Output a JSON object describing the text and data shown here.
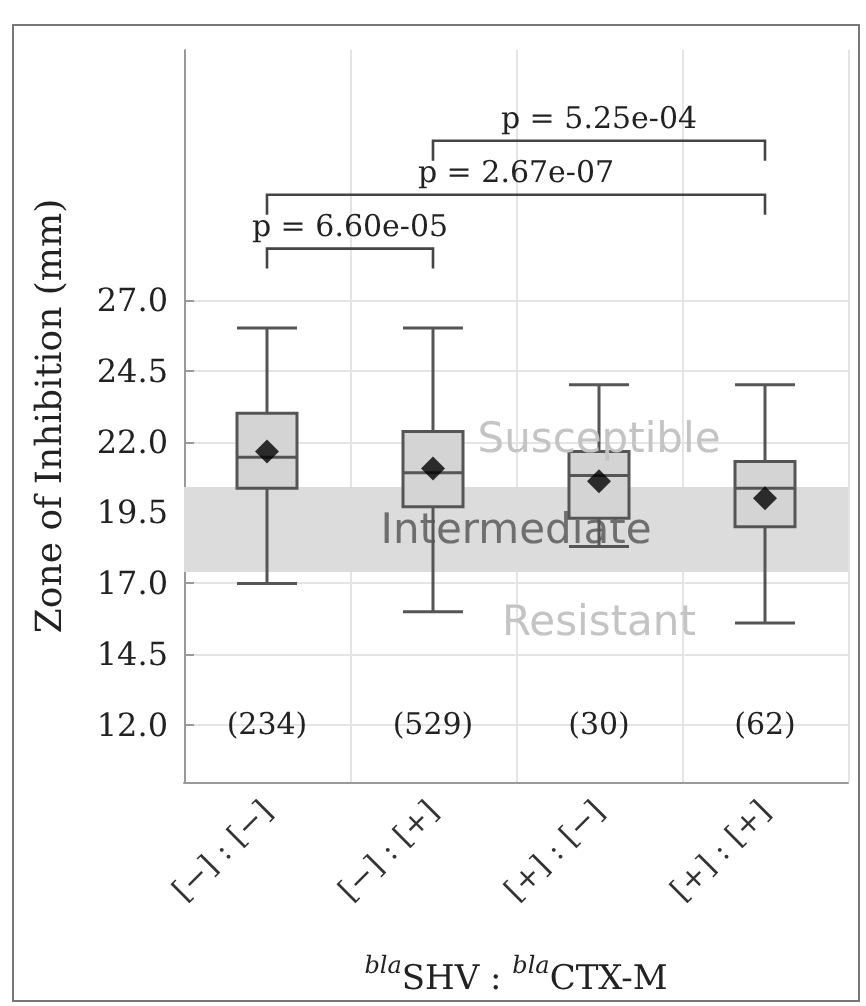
{
  "chart_data": {
    "type": "box",
    "ylabel": "Zone of Inhibition (mm)",
    "xlabel": "$^{bla}$SHV : $^{bla}$CTX-M",
    "categories": [
      "[−] : [−]",
      "[−] : [+]",
      "[+] : [−]",
      "[+] : [+]"
    ],
    "boxes": [
      {
        "low": 17.0,
        "q1": 20.35,
        "median": 21.45,
        "q3": 23.0,
        "high": 26.0,
        "mean": 21.65
      },
      {
        "low": 16.0,
        "q1": 19.7,
        "median": 20.9,
        "q3": 22.35,
        "high": 26.0,
        "mean": 21.05
      },
      {
        "low": 18.3,
        "q1": 19.3,
        "median": 20.8,
        "q3": 21.65,
        "high": 24.0,
        "mean": 20.6
      },
      {
        "low": 15.6,
        "q1": 19.0,
        "median": 20.35,
        "q3": 21.3,
        "high": 24.0,
        "mean": 20.0
      }
    ],
    "color": "#d4d4d4",
    "marker": "diamond",
    "grid": true,
    "ylim": [
      10.0,
      35.8
    ],
    "yticks": [
      {
        "value": 12,
        "label": "12.0"
      },
      {
        "value": 14.5,
        "label": "14.5"
      },
      {
        "value": 17,
        "label": "17.0"
      },
      {
        "value": 19.5,
        "label": "19.5"
      },
      {
        "value": 22,
        "label": "22.0"
      },
      {
        "value": 24.5,
        "label": "24.5"
      },
      {
        "value": 27,
        "label": "27.0"
      }
    ],
    "bands": [
      {
        "axis": "y",
        "from": 17.4,
        "to": 20.4,
        "label": "Intermediate",
        "color": "#dcdcdc"
      }
    ],
    "annotations": [
      "p = 6.60e-05",
      "p = 2.67e-07",
      "p = 5.25e-04",
      "Susceptible",
      "Resistant",
      "(234)",
      "(529)",
      "(30)",
      "(62)"
    ]
  }
}
